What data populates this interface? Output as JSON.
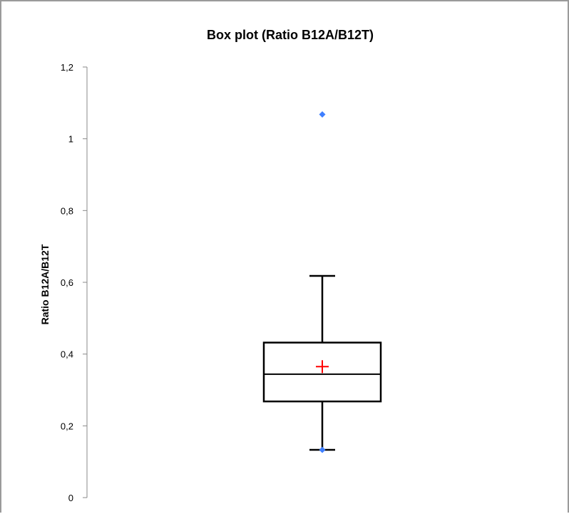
{
  "chart_data": {
    "type": "box",
    "title": "Box plot (Ratio B12A/B12T)",
    "xlabel": "",
    "ylabel": "Ratio B12A/B12T",
    "ylim": [
      0,
      1.2
    ],
    "yticks": [
      {
        "value": 0,
        "label": "0"
      },
      {
        "value": 0.2,
        "label": "0,2"
      },
      {
        "value": 0.4,
        "label": "0,4"
      },
      {
        "value": 0.6,
        "label": "0,6"
      },
      {
        "value": 0.8,
        "label": "0,8"
      },
      {
        "value": 1.0,
        "label": "1"
      },
      {
        "value": 1.2,
        "label": "1,2"
      }
    ],
    "grid": false,
    "legend": "none",
    "box": {
      "whisker_low": 0.133,
      "q1": 0.268,
      "median": 0.344,
      "q3": 0.432,
      "whisker_high": 0.618,
      "mean": 0.365
    },
    "points": [
      {
        "value": 1.068
      },
      {
        "value": 0.133
      }
    ],
    "colors": {
      "box": "#000000",
      "mean": "#ff0000",
      "points": "#3f7fff",
      "axis": "#888888"
    }
  }
}
